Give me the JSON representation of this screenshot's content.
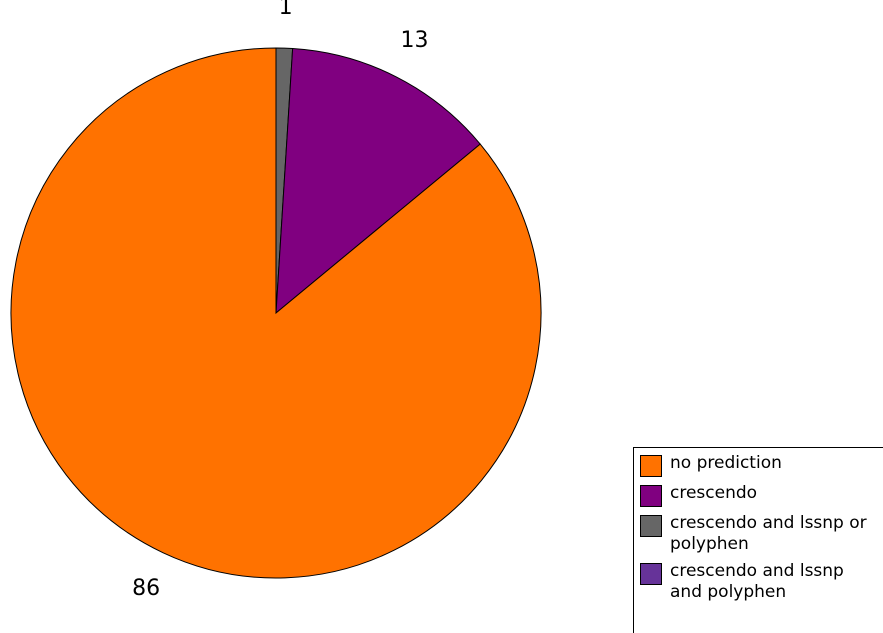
{
  "chart_data": {
    "type": "pie",
    "title": "",
    "start_angle_deg": 0,
    "direction": "clockwise",
    "slices": [
      {
        "label": "crescendo and lssnp or polyphen",
        "value": 1,
        "color": "#666666"
      },
      {
        "label": "crescendo",
        "value": 13,
        "color": "#800080"
      },
      {
        "label": "no prediction",
        "value": 86,
        "color": "#ff7200"
      }
    ],
    "data_labels": [
      "1",
      "13",
      "86"
    ],
    "legend": {
      "placement": "bottom-right",
      "entries": [
        {
          "label": "no prediction",
          "color": "#ff7200"
        },
        {
          "label": "crescendo",
          "color": "#800080"
        },
        {
          "label": "crescendo and lssnp or polyphen",
          "color": "#666666"
        },
        {
          "label": "crescendo and lssnp and polyphen",
          "color": "#663399"
        }
      ]
    }
  }
}
